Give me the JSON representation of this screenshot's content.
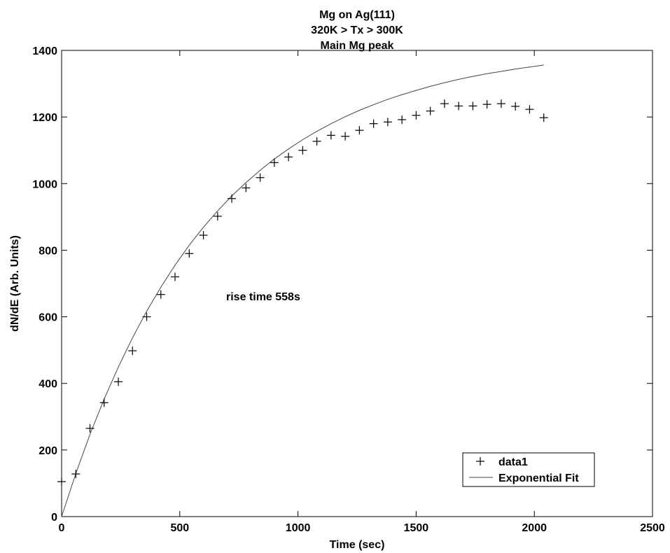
{
  "chart_data": {
    "type": "scatter",
    "title_lines": [
      "Mg on Ag(111)",
      "320K > Tx > 300K",
      "Main Mg peak"
    ],
    "xlabel": "Time (sec)",
    "ylabel": "dN/dE (Arb. Units)",
    "xlim": [
      0,
      2500
    ],
    "ylim": [
      0,
      1400
    ],
    "x_ticks": [
      0,
      500,
      1000,
      1500,
      2000,
      2500
    ],
    "y_ticks": [
      0,
      200,
      400,
      600,
      800,
      1000,
      1200,
      1400
    ],
    "grid": false,
    "legend_position": "bottom-right",
    "annotation": "rise time 558s",
    "series": [
      {
        "name": "data1",
        "marker": "+",
        "x": [
          0,
          60,
          120,
          180,
          240,
          300,
          360,
          420,
          480,
          540,
          600,
          660,
          720,
          780,
          840,
          900,
          960,
          1020,
          1080,
          1140,
          1200,
          1260,
          1320,
          1380,
          1440,
          1500,
          1560,
          1620,
          1680,
          1740,
          1800,
          1860,
          1920,
          1980,
          2040
        ],
        "y": [
          105,
          128,
          265,
          342,
          405,
          498,
          600,
          667,
          720,
          790,
          845,
          902,
          955,
          987,
          1018,
          1063,
          1080,
          1100,
          1127,
          1145,
          1142,
          1160,
          1180,
          1185,
          1192,
          1205,
          1218,
          1240,
          1233,
          1233,
          1238,
          1240,
          1232,
          1223,
          1198
        ]
      },
      {
        "name": "Exponential Fit",
        "line": true,
        "x": [
          0,
          60,
          120,
          180,
          240,
          300,
          360,
          420,
          480,
          540,
          600,
          660,
          720,
          780,
          840,
          900,
          960,
          1020,
          1080,
          1140,
          1200,
          1260,
          1320,
          1380,
          1440,
          1500,
          1560,
          1620,
          1680,
          1740,
          1800,
          1860,
          1920,
          1980,
          2040
        ],
        "y": [
          0,
          129,
          247,
          353,
          449,
          537,
          617,
          689,
          755,
          815,
          869,
          918,
          963,
          1003,
          1040,
          1074,
          1104,
          1132,
          1157,
          1180,
          1201,
          1220,
          1237,
          1253,
          1267,
          1280,
          1292,
          1303,
          1313,
          1322,
          1330,
          1337,
          1344,
          1350,
          1356
        ]
      }
    ]
  }
}
